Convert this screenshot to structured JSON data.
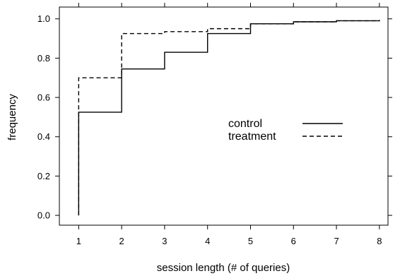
{
  "chart_data": {
    "type": "line",
    "step": true,
    "title": "",
    "xlabel": "session length (# of queries)",
    "ylabel": "frequency",
    "xlim": [
      0.55,
      8.2
    ],
    "ylim": [
      -0.05,
      1.06
    ],
    "xticks": [
      1,
      2,
      3,
      4,
      5,
      6,
      7,
      8
    ],
    "yticks": [
      0.0,
      0.2,
      0.4,
      0.6,
      0.8,
      1.0
    ],
    "xtick_labels": [
      "1",
      "2",
      "3",
      "4",
      "5",
      "6",
      "7",
      "8"
    ],
    "ytick_labels": [
      "0.0",
      "0.2",
      "0.4",
      "0.6",
      "0.8",
      "1.0"
    ],
    "grid": false,
    "legend_position": "center-right",
    "series": [
      {
        "name": "control",
        "style": "solid",
        "x": [
          1,
          2,
          3,
          4,
          5,
          6,
          7,
          8
        ],
        "y": [
          0.525,
          0.745,
          0.83,
          0.925,
          0.975,
          0.985,
          0.99,
          0.99
        ]
      },
      {
        "name": "treatment",
        "style": "dashed",
        "x": [
          1,
          2,
          3,
          4,
          5,
          6,
          7,
          8
        ],
        "y": [
          0.7,
          0.925,
          0.935,
          0.95,
          0.975,
          0.985,
          0.99,
          0.995
        ]
      }
    ]
  }
}
